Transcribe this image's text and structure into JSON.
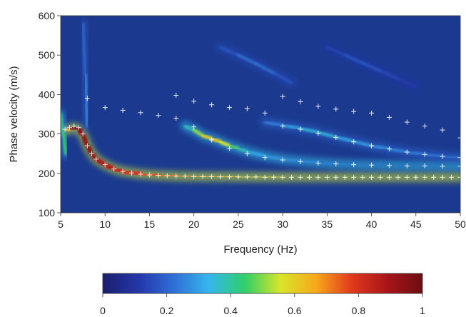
{
  "chart_data": {
    "type": "heatmap",
    "title": "",
    "xlabel": "Frequency (Hz)",
    "ylabel": "Phase velocity (m/s)",
    "xlim": [
      5,
      50
    ],
    "ylim": [
      100,
      600
    ],
    "x_ticks": [
      "5",
      "10",
      "15",
      "20",
      "25",
      "30",
      "35",
      "40",
      "45",
      "50"
    ],
    "y_ticks": [
      "100",
      "200",
      "300",
      "400",
      "500",
      "600"
    ],
    "colorbar": {
      "range": [
        0,
        1
      ],
      "ticks": [
        "0",
        "0.2",
        "0.4",
        "0.6",
        "0.8",
        "1"
      ],
      "colors": [
        "#1a1f6e",
        "#2436a8",
        "#2f6fd6",
        "#36b6ee",
        "#2fcf6a",
        "#d8e62a",
        "#f7a81b",
        "#e23a1c",
        "#a8151a",
        "#6b0e12"
      ]
    },
    "background_color": "#1b3a8f",
    "picks": {
      "mode0": {
        "x": [
          5.5,
          6,
          6.5,
          7,
          7.5,
          8,
          8.5,
          9,
          10,
          11,
          12,
          13,
          14,
          15,
          16,
          17,
          18,
          19,
          20,
          21,
          22,
          23,
          24,
          25,
          26,
          27,
          28,
          29,
          30,
          31,
          32,
          33,
          34,
          35,
          36,
          37,
          38,
          39,
          40,
          41,
          42,
          43,
          44,
          45,
          46,
          47,
          48,
          49,
          50
        ],
        "y": [
          312,
          316,
          320,
          316,
          300,
          270,
          250,
          236,
          222,
          211,
          205,
          201,
          198,
          196,
          195,
          194,
          193,
          193,
          192,
          192,
          192,
          191,
          191,
          191,
          191,
          191,
          190,
          190,
          190,
          190,
          190,
          190,
          190,
          190,
          190,
          190,
          190,
          190,
          190,
          190,
          190,
          190,
          190,
          190,
          190,
          190,
          190,
          190,
          190
        ]
      },
      "mode1": {
        "x": [
          18,
          20,
          22,
          24,
          26,
          28,
          30,
          32,
          34,
          36,
          38,
          40,
          42,
          44,
          46,
          48,
          50
        ],
        "y": [
          340,
          318,
          285,
          263,
          250,
          240,
          234,
          230,
          226,
          224,
          222,
          221,
          220,
          219,
          219,
          218,
          218
        ]
      },
      "mode2": {
        "x": [
          30,
          32,
          34,
          36,
          38,
          40,
          42,
          44,
          46,
          48,
          50
        ],
        "y": [
          320,
          312,
          302,
          291,
          280,
          270,
          262,
          254,
          248,
          243,
          240
        ]
      },
      "upper": {
        "x": [
          8,
          10,
          12,
          14,
          16,
          18,
          20,
          22,
          24,
          26,
          28,
          30,
          32,
          34,
          36,
          38,
          40,
          42,
          44,
          46,
          48,
          50
        ],
        "y": [
          390,
          367,
          360,
          354,
          347,
          398,
          383,
          374,
          367,
          364,
          353,
          395,
          382,
          370,
          363,
          357,
          353,
          342,
          330,
          320,
          310,
          290
        ]
      }
    },
    "energy_ridges": [
      {
        "x": [
          5.4,
          6,
          6.5,
          7,
          7.5,
          8,
          8.5,
          9,
          10,
          11,
          12,
          14,
          16,
          18,
          20,
          25,
          30,
          35,
          40,
          45,
          50
        ],
        "y": [
          308,
          312,
          316,
          312,
          298,
          270,
          250,
          236,
          222,
          211,
          205,
          198,
          195,
          193,
          192,
          191,
          190,
          190,
          190,
          190,
          190
        ],
        "amplitude": [
          0.45,
          0.85,
          0.98,
          1.0,
          0.9,
          0.95,
          0.92,
          0.9,
          0.88,
          0.86,
          0.82,
          0.78,
          0.74,
          0.7,
          0.68,
          0.62,
          0.58,
          0.55,
          0.52,
          0.5,
          0.48
        ]
      },
      {
        "x": [
          19,
          20,
          21,
          22,
          23,
          24,
          25,
          26,
          28,
          30,
          32,
          34,
          36,
          38,
          40,
          42,
          44,
          46,
          48,
          50
        ],
        "y": [
          320,
          310,
          296,
          288,
          280,
          270,
          263,
          255,
          244,
          236,
          231,
          227,
          224,
          222,
          221,
          220,
          219,
          219,
          218,
          218
        ],
        "amplitude": [
          0.3,
          0.45,
          0.58,
          0.62,
          0.6,
          0.52,
          0.42,
          0.34,
          0.3,
          0.28,
          0.27,
          0.26,
          0.25,
          0.24,
          0.24,
          0.23,
          0.23,
          0.22,
          0.22,
          0.22
        ]
      },
      {
        "x": [
          28,
          30,
          32,
          34,
          36,
          38,
          40,
          42,
          44,
          46,
          48,
          50
        ],
        "y": [
          330,
          322,
          314,
          304,
          292,
          281,
          270,
          262,
          254,
          248,
          243,
          240
        ],
        "amplitude": [
          0.22,
          0.3,
          0.34,
          0.36,
          0.34,
          0.32,
          0.3,
          0.28,
          0.26,
          0.25,
          0.24,
          0.23
        ]
      },
      {
        "x": [
          23,
          25,
          27,
          29,
          31
        ],
        "y": [
          520,
          500,
          478,
          455,
          430
        ],
        "amplitude": [
          0.15,
          0.22,
          0.26,
          0.22,
          0.15
        ]
      },
      {
        "x": [
          35,
          37,
          39,
          41,
          43,
          45
        ],
        "y": [
          520,
          500,
          480,
          460,
          440,
          420
        ],
        "amplitude": [
          0.12,
          0.18,
          0.2,
          0.18,
          0.14,
          0.1
        ]
      },
      {
        "x": [
          7.5,
          7.8,
          8
        ],
        "y": [
          580,
          450,
          320
        ],
        "amplitude": [
          0.18,
          0.25,
          0.3
        ]
      },
      {
        "x": [
          5,
          5.3,
          5.6
        ],
        "y": [
          350,
          300,
          250
        ],
        "amplitude": [
          0.35,
          0.5,
          0.4
        ]
      }
    ]
  }
}
